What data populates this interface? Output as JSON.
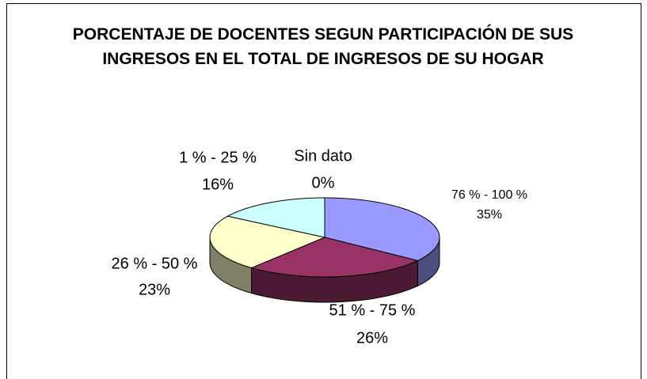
{
  "chart_data": {
    "type": "pie3d",
    "title": "PORCENTAJE DE DOCENTES SEGUN PARTICIPACIÓN DE SUS INGRESOS EN EL TOTAL DE INGRESOS DE SU HOGAR",
    "categories": [
      "Sin dato",
      "76 % - 100 %",
      "51 % - 75 %",
      "26 % - 50 %",
      "1 % - 25 %"
    ],
    "values": [
      0,
      35,
      26,
      23,
      16
    ],
    "value_labels": [
      "0%",
      "35%",
      "26%",
      "23%",
      "16%"
    ],
    "colors": [
      "#333333",
      "#9999ff",
      "#993366",
      "#ffffcc",
      "#ccffff"
    ]
  }
}
